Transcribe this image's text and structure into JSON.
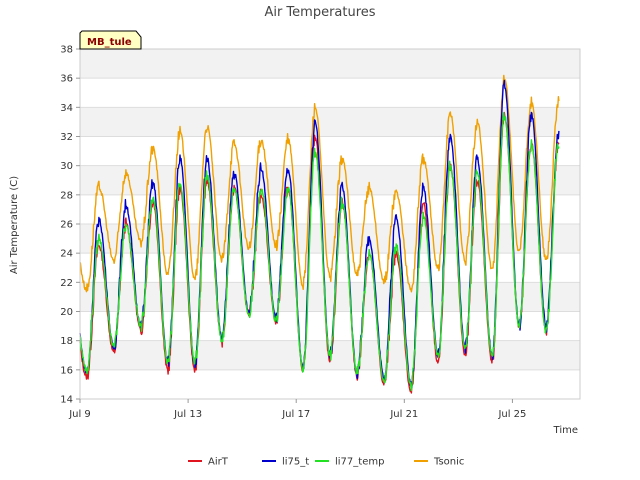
{
  "chart_data": {
    "type": "line",
    "title": "Air Temperatures",
    "xlabel": "Time",
    "ylabel": "Air Temperature (C)",
    "site_label": "MB_tule",
    "xlim": [
      9.0,
      27.5
    ],
    "ylim": [
      14,
      38
    ],
    "yticks": [
      14,
      16,
      18,
      20,
      22,
      24,
      26,
      28,
      30,
      32,
      34,
      36,
      38
    ],
    "xticks": [
      {
        "value": 9,
        "label": "Jul 9"
      },
      {
        "value": 13,
        "label": "Jul 13"
      },
      {
        "value": 17,
        "label": "Jul 17"
      },
      {
        "value": 21,
        "label": "Jul 21"
      },
      {
        "value": 25,
        "label": "Jul 25"
      }
    ],
    "grid": true,
    "legend_position": "bottom",
    "days": [
      9,
      10,
      11,
      12,
      13,
      14,
      15,
      16,
      17,
      18,
      19,
      20,
      21,
      22,
      23,
      24,
      25,
      26
    ],
    "series": [
      {
        "name": "AirT",
        "color": "#e0141e",
        "daily_min": [
          15.5,
          17.2,
          18.7,
          16.0,
          16.0,
          18.0,
          19.8,
          19.3,
          16.0,
          16.5,
          15.6,
          15.0,
          14.5,
          16.5,
          17.0,
          16.6,
          19.0,
          18.6
        ],
        "daily_max": [
          24.5,
          26.0,
          27.5,
          28.5,
          29.0,
          28.5,
          28.0,
          28.5,
          32.0,
          27.5,
          24.0,
          24.0,
          27.5,
          30.0,
          29.0,
          33.5,
          31.5,
          31.5
        ]
      },
      {
        "name": "li75_t",
        "color": "#0000cc",
        "daily_min": [
          15.8,
          17.5,
          19.0,
          16.5,
          16.4,
          18.2,
          20.0,
          19.5,
          16.2,
          17.0,
          15.8,
          15.5,
          15.0,
          17.0,
          17.5,
          17.0,
          19.0,
          19.0
        ],
        "daily_max": [
          26.3,
          27.3,
          28.8,
          30.5,
          30.5,
          29.5,
          29.8,
          29.7,
          33.0,
          28.5,
          25.0,
          26.5,
          28.5,
          32.0,
          30.5,
          35.5,
          33.5,
          32.0
        ]
      },
      {
        "name": "li77_temp",
        "color": "#22e022",
        "daily_min": [
          16.0,
          17.6,
          19.0,
          16.5,
          16.5,
          18.0,
          19.8,
          19.3,
          16.0,
          17.0,
          15.8,
          15.3,
          15.0,
          17.0,
          17.5,
          17.0,
          19.0,
          18.6
        ],
        "daily_max": [
          25.0,
          26.0,
          27.8,
          28.8,
          29.3,
          28.5,
          28.5,
          28.5,
          31.0,
          27.5,
          24.0,
          24.5,
          26.5,
          30.0,
          29.5,
          33.5,
          31.5,
          31.5
        ]
      },
      {
        "name": "Tsonic",
        "color": "#f0a000",
        "daily_min": [
          21.5,
          23.5,
          24.8,
          22.5,
          22.2,
          23.5,
          24.3,
          24.5,
          21.8,
          22.4,
          22.5,
          22.0,
          21.5,
          23.0,
          23.5,
          22.8,
          24.0,
          23.5
        ],
        "daily_max": [
          28.5,
          29.5,
          31.2,
          32.3,
          32.7,
          31.5,
          31.8,
          31.8,
          34.0,
          30.5,
          28.5,
          28.2,
          30.5,
          33.5,
          33.0,
          36.0,
          34.3,
          34.3
        ]
      }
    ]
  }
}
